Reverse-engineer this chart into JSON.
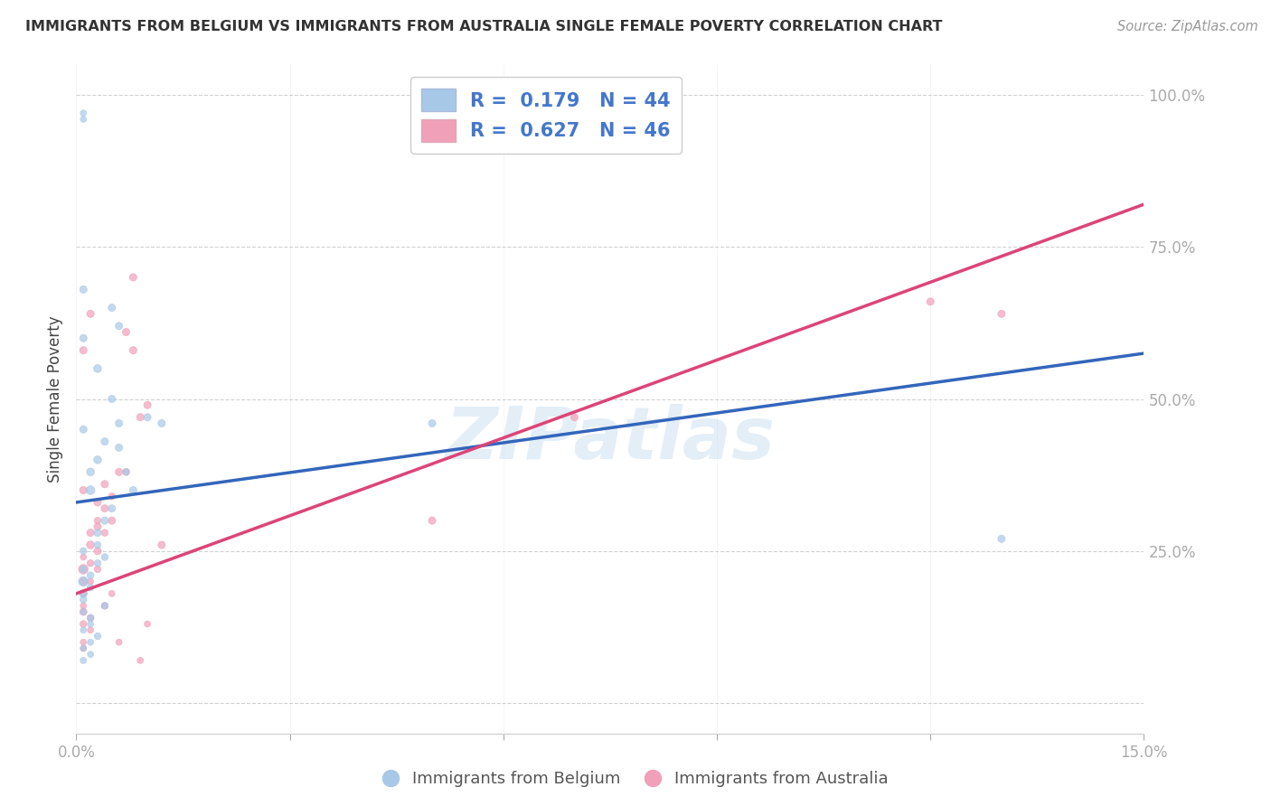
{
  "title": "IMMIGRANTS FROM BELGIUM VS IMMIGRANTS FROM AUSTRALIA SINGLE FEMALE POVERTY CORRELATION CHART",
  "source": "Source: ZipAtlas.com",
  "ylabel": "Single Female Poverty",
  "y_ticks": [
    0.0,
    0.25,
    0.5,
    0.75,
    1.0
  ],
  "y_tick_labels": [
    "",
    "25.0%",
    "50.0%",
    "75.0%",
    "100.0%"
  ],
  "x_ticks": [
    0.0,
    0.03,
    0.06,
    0.09,
    0.12,
    0.15
  ],
  "x_tick_labels": [
    "0.0%",
    "",
    "",
    "",
    "",
    "15.0%"
  ],
  "xlim": [
    0.0,
    0.15
  ],
  "ylim": [
    -0.05,
    1.05
  ],
  "color_belgium": "#a8c8e8",
  "color_australia": "#f0a0b8",
  "line_color_belgium": "#3366bb",
  "line_color_australia": "#dd4477",
  "watermark": "ZIPatlas",
  "belgium_line_x0": 0.0,
  "belgium_line_y0": 0.33,
  "belgium_line_x1": 0.15,
  "belgium_line_y1": 0.575,
  "australia_line_x0": 0.0,
  "australia_line_y0": 0.18,
  "australia_line_x1": 0.15,
  "australia_line_y1": 0.82,
  "belgium_x": [
    0.001,
    0.001,
    0.001,
    0.001,
    0.001,
    0.001,
    0.001,
    0.001,
    0.001,
    0.002,
    0.002,
    0.002,
    0.002,
    0.002,
    0.002,
    0.003,
    0.003,
    0.003,
    0.003,
    0.004,
    0.004,
    0.004,
    0.005,
    0.005,
    0.006,
    0.006,
    0.007,
    0.008,
    0.01,
    0.012,
    0.05,
    0.13,
    0.001,
    0.001,
    0.001,
    0.001,
    0.001,
    0.002,
    0.002,
    0.003,
    0.003,
    0.004,
    0.005,
    0.006
  ],
  "belgium_y": [
    0.2,
    0.18,
    0.22,
    0.25,
    0.17,
    0.15,
    0.12,
    0.09,
    0.07,
    0.35,
    0.38,
    0.19,
    0.21,
    0.13,
    0.1,
    0.4,
    0.55,
    0.28,
    0.11,
    0.3,
    0.43,
    0.16,
    0.32,
    0.65,
    0.42,
    0.62,
    0.38,
    0.35,
    0.47,
    0.46,
    0.46,
    0.27,
    0.97,
    0.96,
    0.68,
    0.6,
    0.45,
    0.14,
    0.08,
    0.26,
    0.23,
    0.24,
    0.5,
    0.46
  ],
  "belgium_size": [
    60,
    40,
    35,
    30,
    30,
    25,
    25,
    25,
    25,
    50,
    40,
    30,
    30,
    25,
    25,
    40,
    40,
    35,
    30,
    35,
    35,
    30,
    35,
    35,
    35,
    35,
    30,
    35,
    35,
    35,
    35,
    35,
    25,
    25,
    35,
    35,
    35,
    30,
    25,
    30,
    30,
    30,
    35,
    35
  ],
  "australia_x": [
    0.001,
    0.001,
    0.001,
    0.001,
    0.001,
    0.001,
    0.001,
    0.001,
    0.001,
    0.002,
    0.002,
    0.002,
    0.002,
    0.002,
    0.003,
    0.003,
    0.003,
    0.003,
    0.004,
    0.004,
    0.004,
    0.005,
    0.005,
    0.006,
    0.007,
    0.008,
    0.009,
    0.01,
    0.012,
    0.05,
    0.07,
    0.12,
    0.13,
    0.001,
    0.001,
    0.002,
    0.002,
    0.003,
    0.004,
    0.005,
    0.006,
    0.007,
    0.008,
    0.009,
    0.01
  ],
  "australia_y": [
    0.22,
    0.2,
    0.15,
    0.18,
    0.13,
    0.1,
    0.09,
    0.24,
    0.16,
    0.26,
    0.28,
    0.14,
    0.12,
    0.2,
    0.25,
    0.33,
    0.22,
    0.3,
    0.32,
    0.28,
    0.36,
    0.3,
    0.34,
    0.38,
    0.61,
    0.58,
    0.47,
    0.49,
    0.26,
    0.3,
    0.47,
    0.66,
    0.64,
    0.35,
    0.58,
    0.23,
    0.64,
    0.29,
    0.16,
    0.18,
    0.1,
    0.38,
    0.7,
    0.07,
    0.13
  ],
  "australia_size": [
    60,
    40,
    35,
    30,
    30,
    25,
    25,
    25,
    25,
    40,
    35,
    30,
    25,
    25,
    35,
    35,
    30,
    30,
    35,
    30,
    35,
    35,
    30,
    35,
    35,
    35,
    35,
    35,
    35,
    35,
    35,
    35,
    35,
    35,
    35,
    30,
    35,
    35,
    30,
    25,
    25,
    30,
    35,
    25,
    25
  ]
}
